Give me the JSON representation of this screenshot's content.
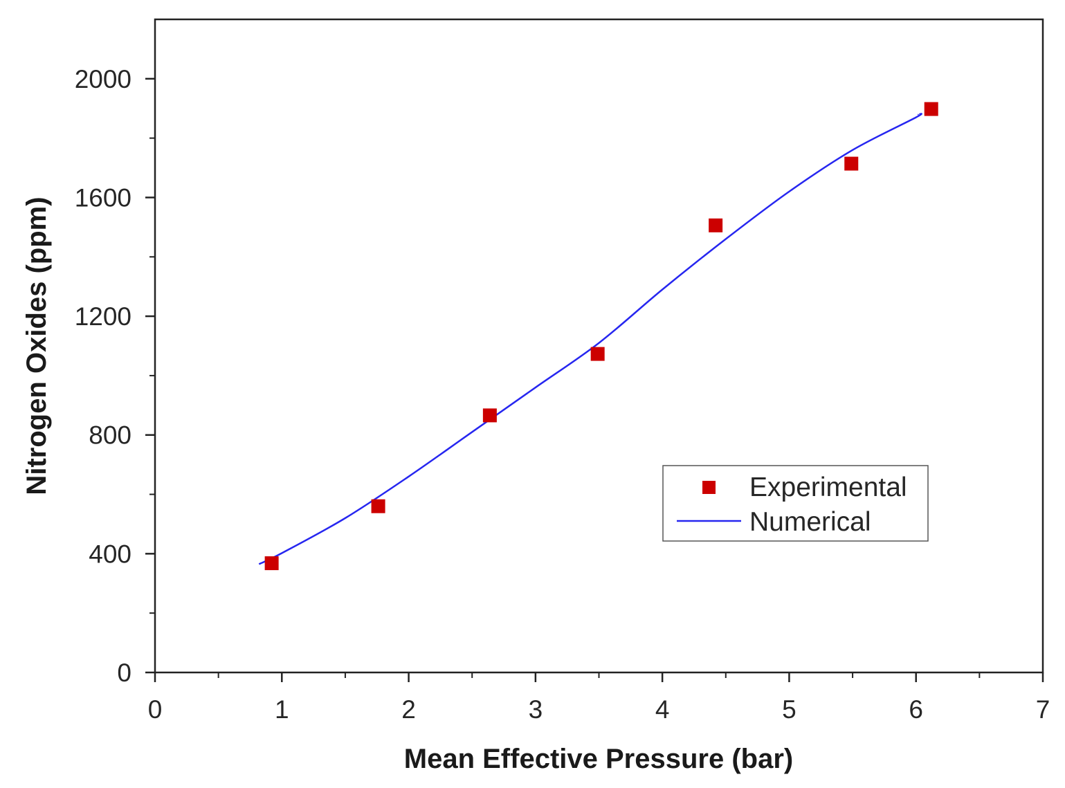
{
  "chart_data": {
    "type": "scatter",
    "title": "",
    "xlabel": "Mean Effective Pressure (bar)",
    "ylabel": "Nitrogen Oxides (ppm)",
    "xlim": [
      0,
      7
    ],
    "ylim": [
      0,
      2200
    ],
    "x_ticks": [
      0,
      1,
      2,
      3,
      4,
      5,
      6,
      7
    ],
    "y_ticks": [
      0,
      400,
      800,
      1200,
      1600,
      2000
    ],
    "grid": false,
    "legend_position": "center-right",
    "series": [
      {
        "name": "Experimental",
        "type": "scatter",
        "marker": "square",
        "color": "#cc0000",
        "x": [
          0.92,
          1.76,
          2.64,
          3.49,
          4.42,
          5.49,
          6.12
        ],
        "y": [
          368,
          560,
          866,
          1073,
          1506,
          1714,
          1898
        ]
      },
      {
        "name": "Numerical",
        "type": "line",
        "color": "#2626f0",
        "x": [
          0.82,
          1.0,
          1.5,
          2.0,
          2.5,
          3.0,
          3.5,
          4.0,
          4.5,
          5.0,
          5.5,
          6.0,
          6.02
        ],
        "y": [
          365,
          402,
          520,
          660,
          810,
          960,
          1110,
          1290,
          1460,
          1620,
          1760,
          1870,
          1880
        ]
      }
    ]
  }
}
